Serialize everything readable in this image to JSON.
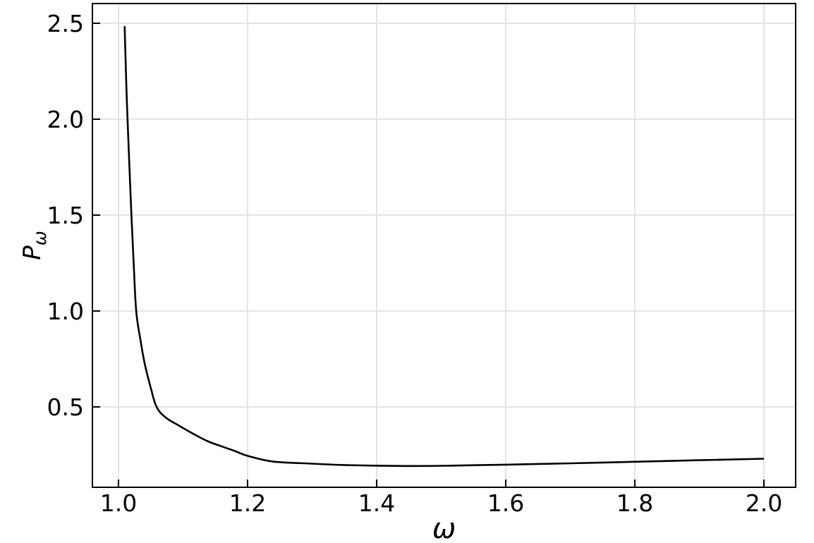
{
  "chart_data": {
    "type": "line",
    "title": "",
    "xlabel": "ω",
    "ylabel": "P_ω",
    "ylabel_main": "P",
    "ylabel_sub": "ω",
    "xlim": [
      0.9596,
      2.0492
    ],
    "ylim": [
      0.081,
      2.603
    ],
    "grid": true,
    "legend": "none",
    "xticks": {
      "values": [
        1.0,
        1.2,
        1.4,
        1.6,
        1.8,
        2.0
      ],
      "labels": [
        "1.0",
        "1.2",
        "1.4",
        "1.6",
        "1.8",
        "2.0"
      ]
    },
    "yticks": {
      "values": [
        0.5,
        1.0,
        1.5,
        2.0,
        2.5
      ],
      "labels": [
        "0.5",
        "1.0",
        "1.5",
        "2.0",
        "2.5"
      ]
    },
    "colors": {
      "line": "#000000",
      "frame": "#000000",
      "grid": "#e4e4e4",
      "tick_label": "#000000",
      "background": "#ffffff"
    },
    "series": [
      {
        "name": "P_ω",
        "color": "#000000",
        "line_width": 2.6,
        "points": [
          [
            1.0095,
            2.485
          ],
          [
            1.012,
            2.2
          ],
          [
            1.014,
            2.0
          ],
          [
            1.017,
            1.75
          ],
          [
            1.02,
            1.5
          ],
          [
            1.0235,
            1.25
          ],
          [
            1.0275,
            1.0
          ],
          [
            1.034,
            0.85
          ],
          [
            1.041,
            0.72
          ],
          [
            1.05,
            0.6
          ],
          [
            1.059,
            0.5
          ],
          [
            1.073,
            0.445
          ],
          [
            1.095,
            0.4
          ],
          [
            1.117,
            0.358
          ],
          [
            1.139,
            0.32
          ],
          [
            1.161,
            0.293
          ],
          [
            1.182,
            0.268
          ],
          [
            1.2,
            0.245
          ],
          [
            1.24,
            0.215
          ],
          [
            1.3,
            0.204
          ],
          [
            1.35,
            0.197
          ],
          [
            1.4,
            0.194
          ],
          [
            1.45,
            0.192
          ],
          [
            1.5,
            0.193
          ],
          [
            1.55,
            0.196
          ],
          [
            1.6,
            0.199
          ],
          [
            1.7,
            0.206
          ],
          [
            1.8,
            0.214
          ],
          [
            1.9,
            0.222
          ],
          [
            2.0,
            0.23
          ]
        ]
      }
    ]
  }
}
